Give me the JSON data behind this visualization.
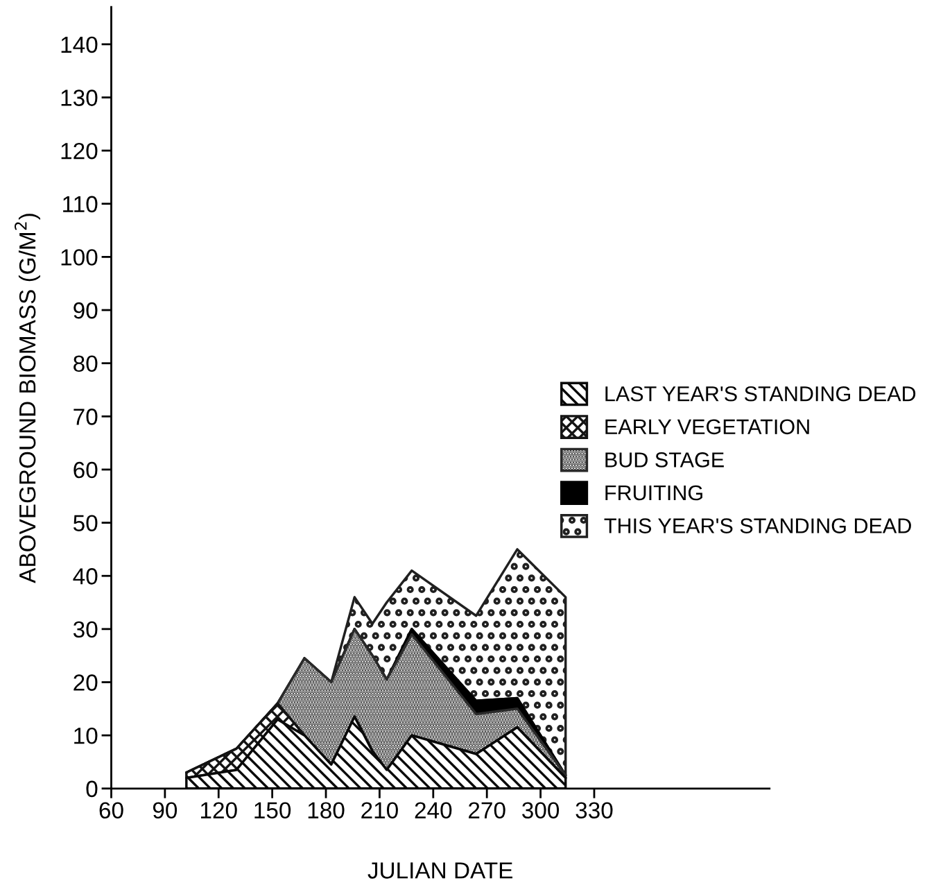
{
  "chart_data": {
    "type": "area",
    "stacked": true,
    "xlabel": "JULIAN DATE",
    "ylabel": "ABOVEGROUND BIOMASS (G/M$^{2}$)",
    "x": [
      102,
      130,
      153,
      168,
      183,
      196,
      206,
      214,
      228,
      264,
      287,
      314
    ],
    "series": [
      {
        "name": "LAST YEAR'S STANDING DEAD",
        "color": "#0a0a0a",
        "values": [
          2,
          3.5,
          13,
          10,
          4.5,
          13.5,
          7,
          3.5,
          10,
          6.5,
          11.5,
          2
        ]
      },
      {
        "name": "EARLY VEGETATION",
        "color": "#141414",
        "values": [
          1,
          4,
          3,
          0,
          0,
          0,
          0,
          0,
          0,
          0,
          0,
          0
        ]
      },
      {
        "name": "BUD STAGE",
        "color": "#2a2a2a",
        "values": [
          0,
          0,
          0,
          14.5,
          15.5,
          16.5,
          18,
          17,
          19,
          7.5,
          3.5,
          0.5
        ]
      },
      {
        "name": "FRUITING",
        "color": "#000000",
        "values": [
          0,
          0,
          0,
          0,
          0,
          0,
          0,
          0,
          1,
          2.5,
          2,
          0
        ]
      },
      {
        "name": "THIS YEAR'S STANDING DEAD",
        "color": "#202020",
        "values": [
          0,
          0,
          0,
          0,
          0,
          6,
          6,
          14.5,
          11,
          16,
          28,
          33.5
        ]
      }
    ],
    "xlim": [
      60,
      428
    ],
    "xticks": [
      60,
      90,
      120,
      150,
      180,
      210,
      240,
      270,
      300,
      330
    ],
    "ylim": [
      0,
      147
    ],
    "yticks": [
      0,
      10,
      20,
      30,
      40,
      50,
      60,
      70,
      80,
      90,
      100,
      110,
      120,
      130,
      140
    ],
    "grid": false,
    "legend": "right"
  }
}
